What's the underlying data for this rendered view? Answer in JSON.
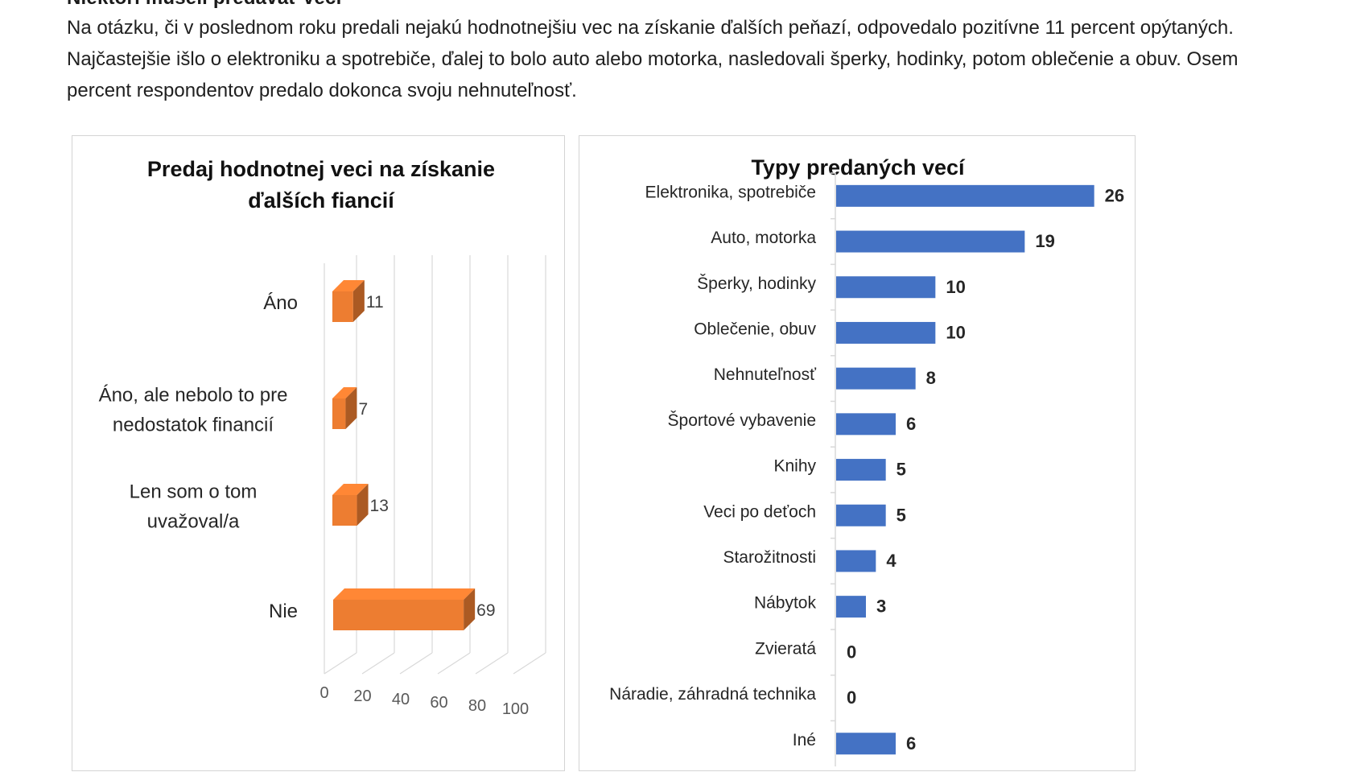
{
  "article": {
    "heading": "Niektorí museli predávať veci",
    "paragraph": "Na otázku, či v poslednom roku predali nejakú hodnotnejšiu vec na získanie ďalších peňazí, odpovedalo pozitívne 11 percent opýtaných. Najčastejšie išlo o elektroniku a spotrebiče, ďalej to bolo auto alebo motorka, nasledovali šperky, hodinky, potom oblečenie a obuv. Osem percent respondentov predalo dokonca svoju nehnuteľnosť."
  },
  "chart_data": [
    {
      "type": "bar",
      "orientation": "horizontal",
      "style": "3d",
      "title_line1": "Predaj hodnotnej veci na získanie",
      "title_line2": "ďalších fiancií",
      "categories": [
        [
          "Áno"
        ],
        [
          "Áno, ale nebolo to pre",
          "nedostatok financií"
        ],
        [
          "Len som o tom",
          "uvažoval/a"
        ],
        [
          "Nie"
        ]
      ],
      "values": [
        11,
        7,
        13,
        69
      ],
      "xlim": [
        0,
        100
      ],
      "xticks": [
        0,
        20,
        40,
        60,
        80,
        100
      ],
      "grid": true,
      "color": "#ED7D31"
    },
    {
      "type": "bar",
      "orientation": "horizontal",
      "title": "Typy predaných vecí",
      "categories": [
        "Elektronika, spotrebiče",
        "Auto, motorka",
        "Šperky, hodinky",
        "Oblečenie, obuv",
        "Nehnuteľnosť",
        "Športové vybavenie",
        "Knihy",
        "Veci po deťoch",
        "Starožitnosti",
        "Nábytok",
        "Zvieratá",
        "Náradie, záhradná technika",
        "Iné"
      ],
      "values": [
        26,
        19,
        10,
        10,
        8,
        6,
        5,
        5,
        4,
        3,
        0,
        0,
        6
      ],
      "xlim": [
        0,
        30
      ],
      "color": "#4472C4"
    }
  ]
}
